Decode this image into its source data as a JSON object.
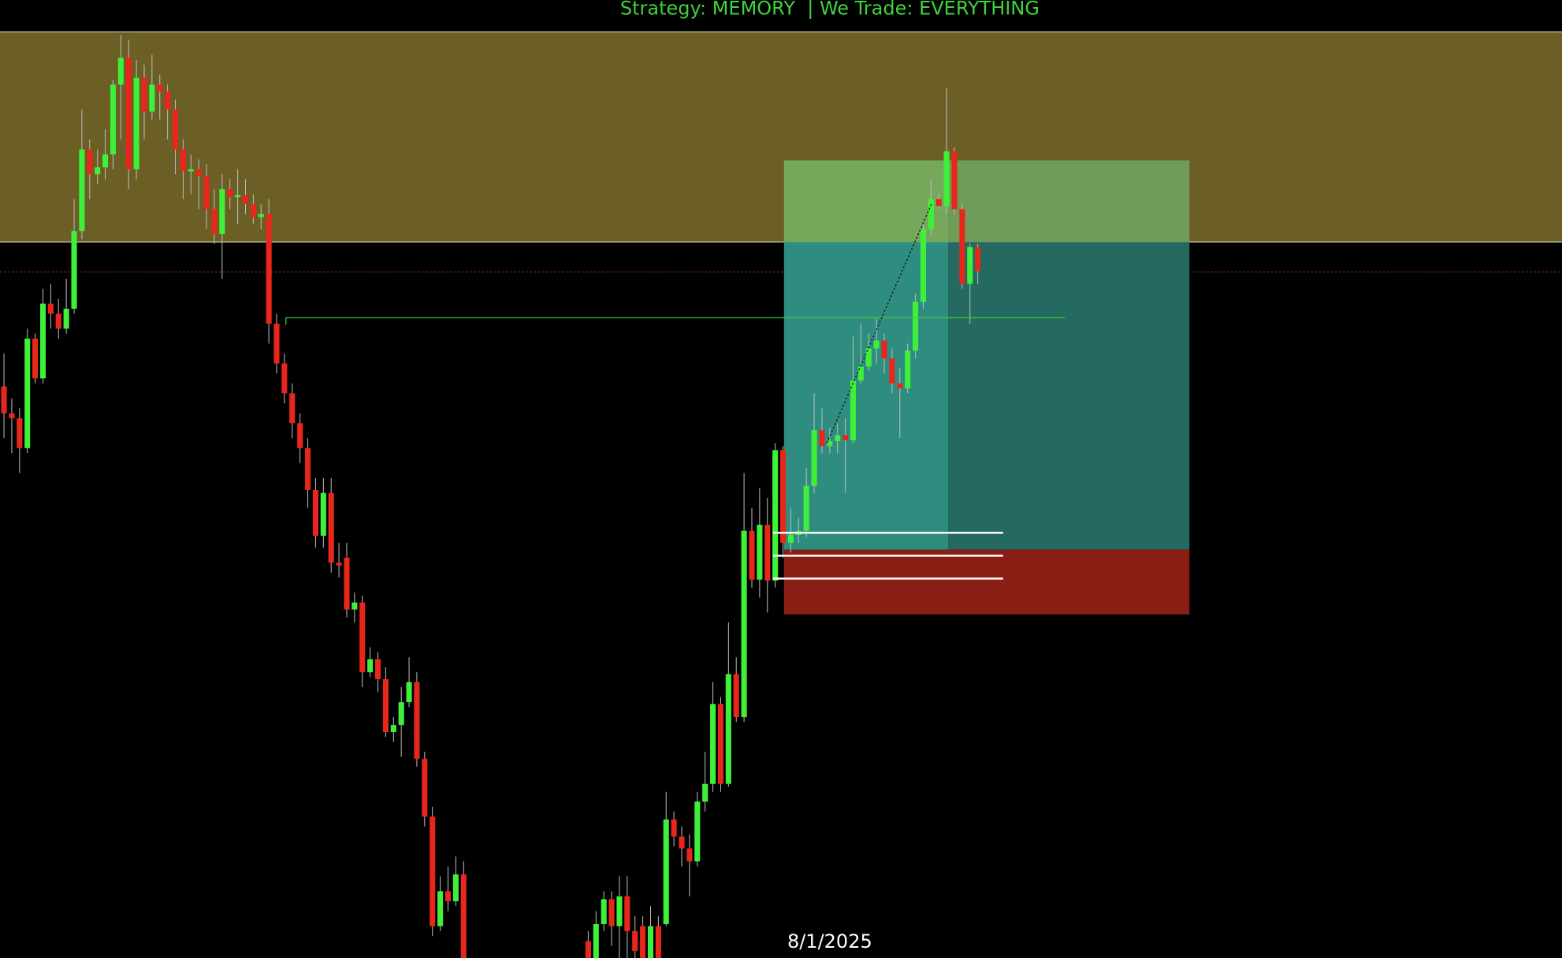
{
  "chart_data": {
    "type": "candlestick",
    "title": "Strategy: MEMORY  | We Trade: EVERYTHING",
    "up_color": "#3ff03a",
    "down_color": "#e8261c",
    "ylim": [
      38,
      1000
    ],
    "categories": [
      null,
      null,
      null,
      null,
      null,
      null,
      null,
      null,
      null,
      null,
      null,
      null,
      null,
      null,
      null,
      null,
      null,
      null,
      null,
      null,
      null,
      null,
      null,
      null,
      null,
      null,
      null,
      null,
      null,
      null,
      null,
      null,
      null,
      null,
      null,
      null,
      null,
      null,
      null,
      null,
      null,
      null,
      null,
      null,
      null,
      null,
      null,
      null,
      null,
      null,
      null,
      null,
      null,
      null,
      null,
      null,
      null,
      null,
      null,
      null,
      null,
      null,
      null,
      null,
      null,
      null,
      null,
      null,
      null,
      null,
      null,
      null,
      null,
      null,
      null,
      null,
      null,
      null,
      null,
      null,
      null,
      null,
      null,
      null,
      null,
      null,
      null,
      null,
      null,
      null,
      null,
      null,
      null,
      null,
      null,
      null,
      null,
      null,
      null,
      null,
      null,
      null,
      null,
      null,
      null,
      null,
      "8/1/2025",
      null,
      null,
      null,
      null,
      null,
      null,
      null,
      null,
      null,
      null,
      null,
      null,
      null,
      null,
      null,
      null,
      null,
      null,
      null
    ],
    "open": [
      612,
      585,
      580,
      550,
      660,
      620,
      695,
      685,
      670,
      690,
      768,
      850,
      825,
      832,
      845,
      915,
      942,
      830,
      922,
      888,
      915,
      908,
      890,
      850,
      828,
      830,
      823,
      790,
      765,
      810,
      802,
      804,
      795,
      782,
      785,
      675,
      635,
      605,
      575,
      550,
      508,
      462,
      505,
      435,
      440,
      388,
      395,
      325,
      338,
      318,
      265,
      272,
      295,
      315,
      238,
      180,
      70,
      105,
      95,
      122,
      null,
      null,
      null,
      null,
      null,
      null,
      null,
      null,
      null,
      null,
      null,
      null,
      null,
      null,
      null,
      55,
      38,
      72,
      97,
      70,
      100,
      65,
      70,
      38,
      70,
      72,
      177,
      160,
      148,
      135,
      195,
      213,
      293,
      213,
      323,
      280,
      467,
      418,
      473,
      417,
      548,
      455,
      463,
      467,
      512,
      568,
      552,
      557,
      563,
      558,
      618,
      632,
      650,
      658,
      640,
      615,
      610,
      648,
      697,
      770,
      800,
      793,
      848,
      790,
      715,
      752
    ],
    "high": [
      645,
      600,
      590,
      670,
      665,
      710,
      715,
      700,
      720,
      800,
      890,
      860,
      850,
      870,
      920,
      965,
      960,
      940,
      935,
      945,
      925,
      915,
      900,
      860,
      845,
      840,
      835,
      810,
      825,
      820,
      830,
      820,
      805,
      795,
      800,
      685,
      645,
      615,
      585,
      560,
      520,
      520,
      520,
      455,
      455,
      405,
      402,
      350,
      345,
      330,
      280,
      310,
      340,
      325,
      245,
      190,
      120,
      130,
      140,
      135,
      null,
      null,
      null,
      null,
      null,
      null,
      null,
      null,
      null,
      null,
      null,
      null,
      null,
      null,
      null,
      65,
      85,
      105,
      105,
      120,
      120,
      80,
      80,
      90,
      80,
      205,
      185,
      170,
      162,
      205,
      245,
      315,
      300,
      375,
      340,
      525,
      490,
      510,
      500,
      555,
      552,
      490,
      480,
      530,
      605,
      590,
      570,
      575,
      580,
      662,
      675,
      665,
      680,
      665,
      650,
      630,
      655,
      705,
      775,
      820,
      805,
      912,
      852,
      795,
      755,
      755
    ],
    "low": [
      560,
      545,
      525,
      545,
      615,
      615,
      670,
      660,
      665,
      685,
      760,
      800,
      815,
      820,
      830,
      860,
      810,
      820,
      860,
      880,
      880,
      860,
      825,
      800,
      805,
      790,
      770,
      755,
      720,
      790,
      775,
      785,
      775,
      770,
      655,
      625,
      595,
      560,
      535,
      490,
      450,
      450,
      425,
      420,
      380,
      375,
      310,
      320,
      305,
      260,
      255,
      240,
      290,
      230,
      170,
      60,
      65,
      85,
      90,
      38,
      null,
      null,
      null,
      null,
      null,
      null,
      null,
      null,
      null,
      null,
      null,
      null,
      null,
      null,
      null,
      38,
      38,
      65,
      50,
      38,
      38,
      38,
      38,
      38,
      38,
      70,
      150,
      130,
      100,
      130,
      185,
      205,
      205,
      210,
      275,
      275,
      410,
      400,
      385,
      410,
      440,
      445,
      455,
      460,
      505,
      545,
      545,
      545,
      505,
      555,
      615,
      628,
      635,
      625,
      605,
      560,
      605,
      640,
      690,
      765,
      790,
      785,
      785,
      710,
      675,
      715
    ],
    "close": [
      585,
      580,
      550,
      660,
      620,
      695,
      685,
      670,
      690,
      768,
      850,
      825,
      832,
      845,
      915,
      942,
      830,
      922,
      888,
      915,
      908,
      890,
      850,
      828,
      830,
      823,
      790,
      765,
      810,
      802,
      804,
      795,
      782,
      785,
      675,
      635,
      605,
      575,
      550,
      508,
      462,
      505,
      435,
      432,
      388,
      395,
      325,
      338,
      318,
      265,
      272,
      295,
      315,
      238,
      180,
      70,
      105,
      95,
      122,
      38,
      null,
      null,
      null,
      null,
      null,
      null,
      null,
      null,
      null,
      null,
      null,
      null,
      null,
      null,
      null,
      38,
      72,
      97,
      70,
      100,
      65,
      45,
      38,
      70,
      38,
      177,
      160,
      148,
      135,
      195,
      213,
      293,
      213,
      323,
      280,
      467,
      418,
      473,
      417,
      548,
      455,
      463,
      467,
      512,
      568,
      552,
      557,
      563,
      558,
      618,
      632,
      650,
      658,
      640,
      615,
      610,
      648,
      697,
      770,
      800,
      793,
      848,
      790,
      715,
      752,
      728
    ]
  }
}
